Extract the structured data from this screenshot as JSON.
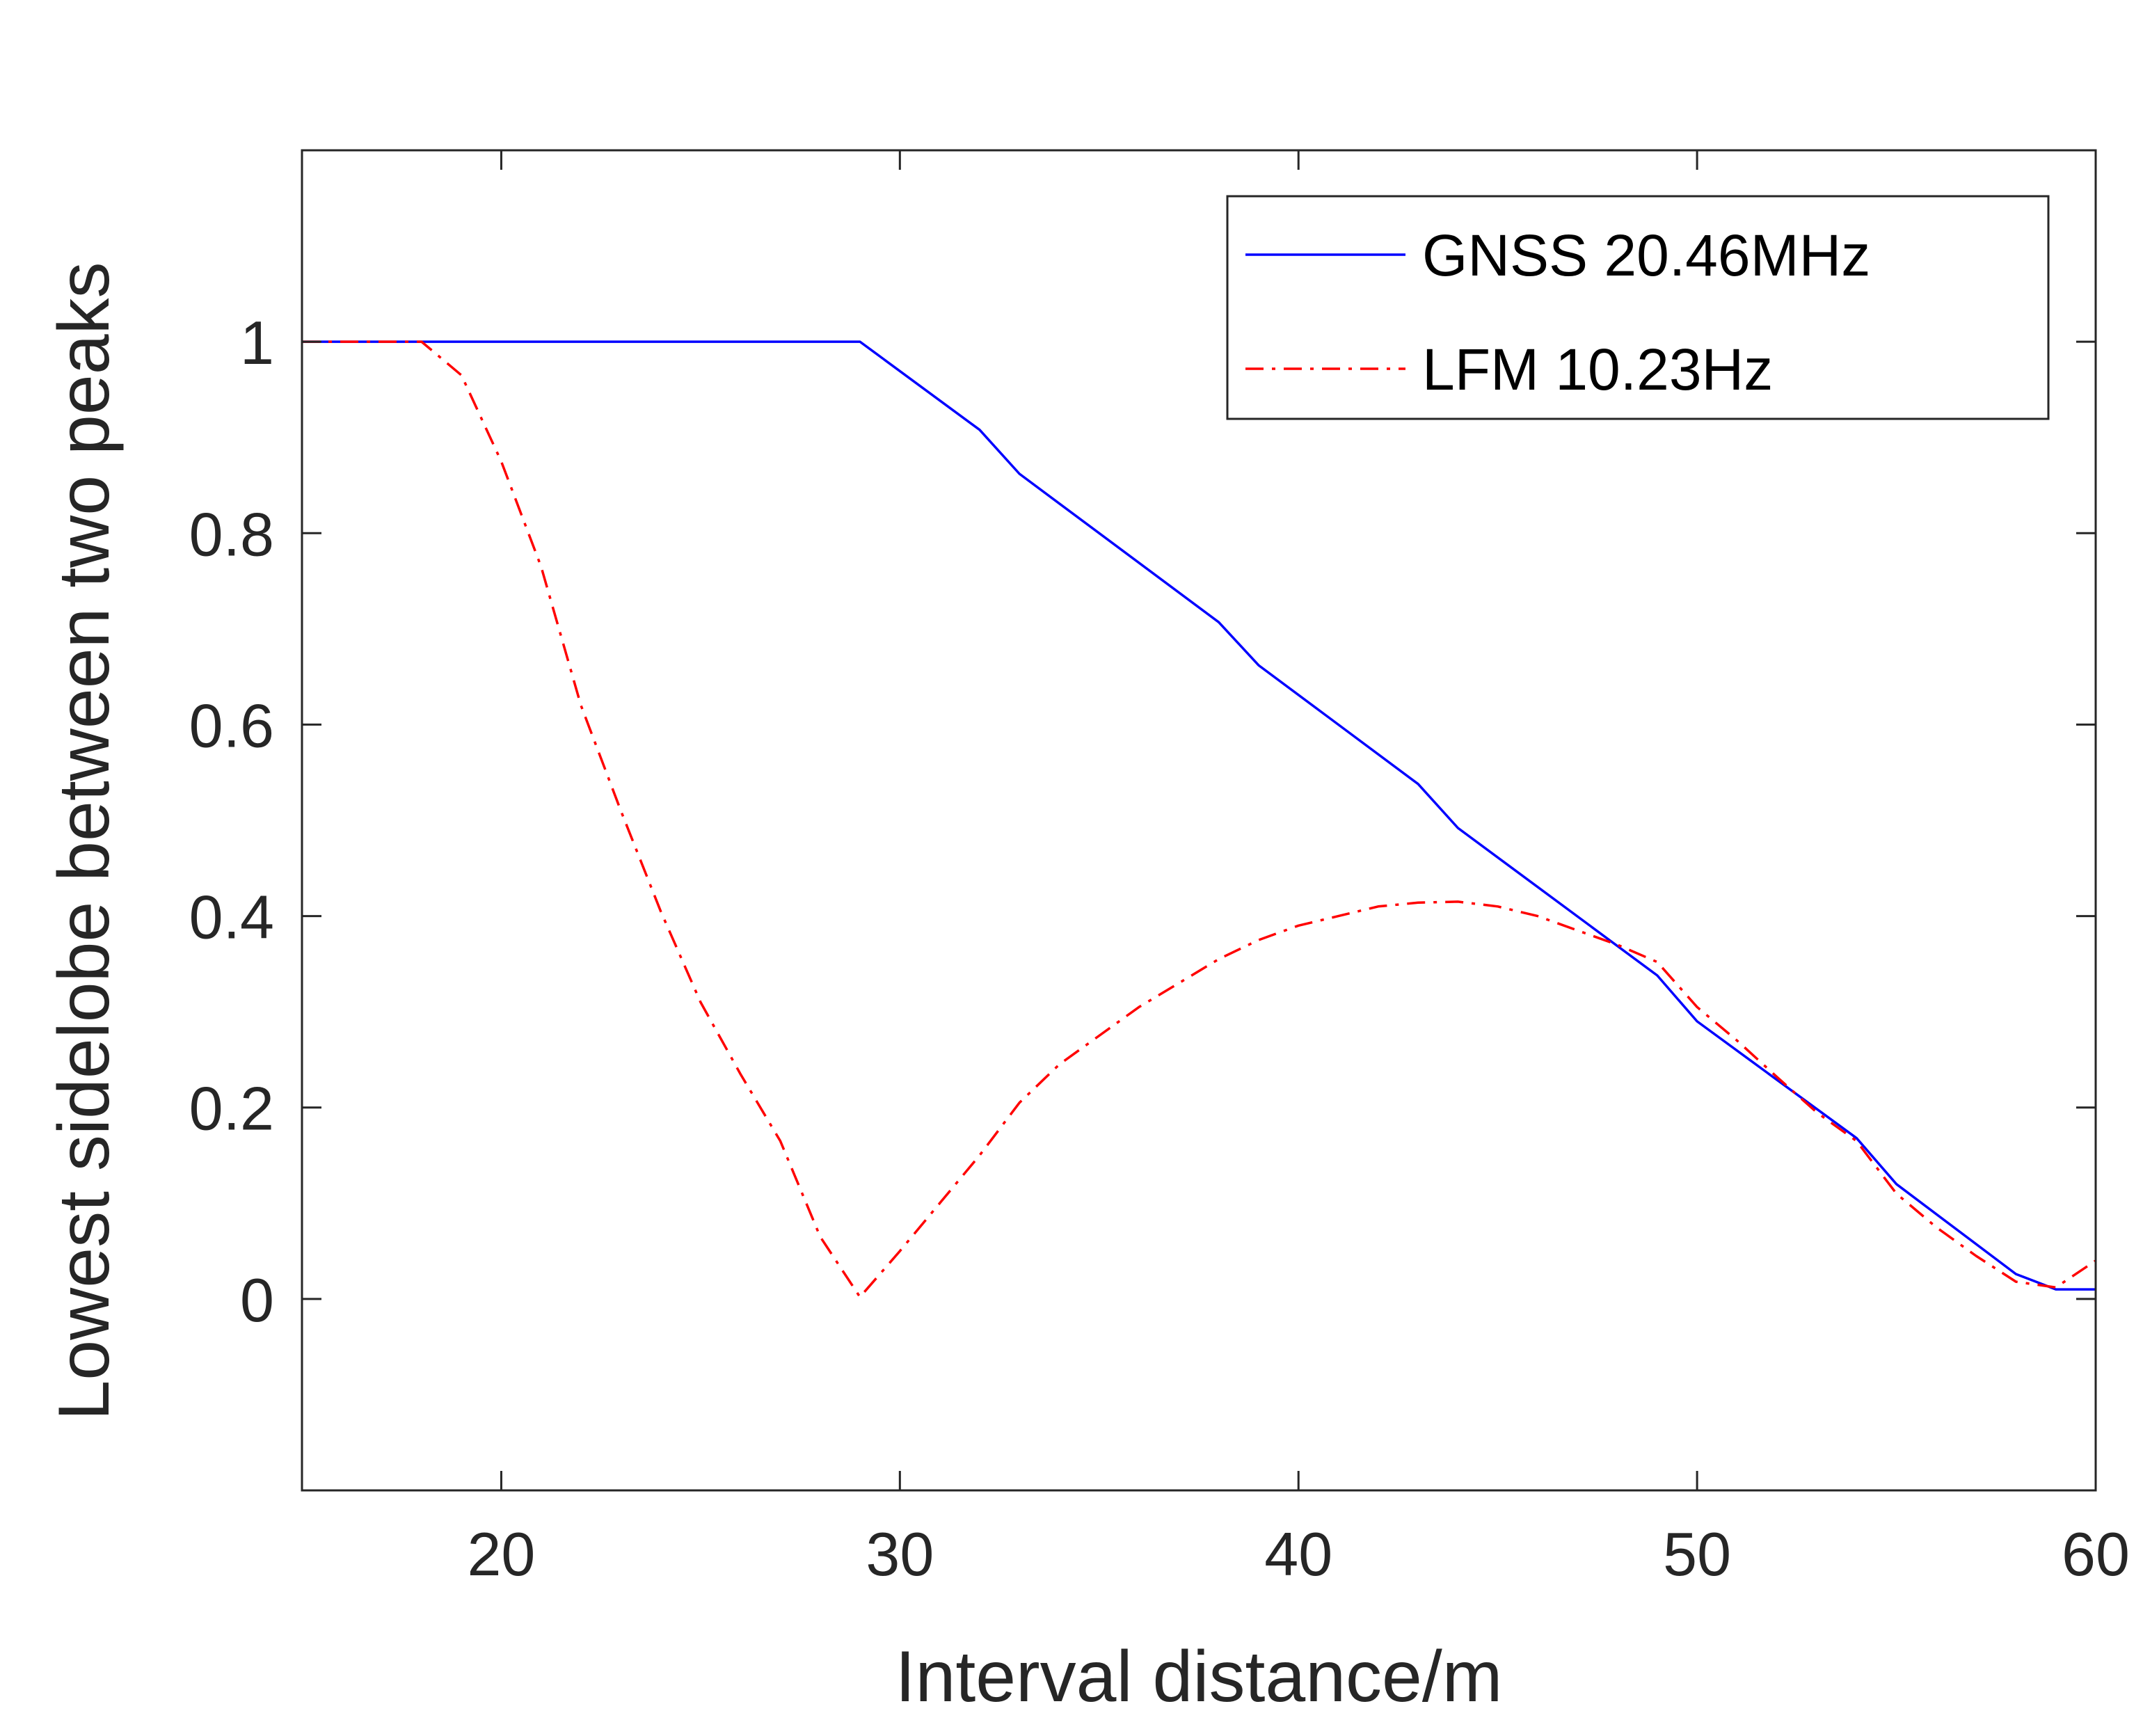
{
  "chart_data": {
    "type": "line",
    "title": "",
    "xlabel": "Interval distance/m",
    "ylabel": "Lowest sidelobe between two peaks",
    "xlim": [
      15,
      60
    ],
    "ylim": [
      -0.2,
      1.2
    ],
    "xticks": [
      20,
      30,
      40,
      50,
      60
    ],
    "yticks": [
      0,
      0.2,
      0.4,
      0.6,
      0.8,
      1
    ],
    "xtick_labels": [
      "20",
      "30",
      "40",
      "50",
      "60"
    ],
    "ytick_labels": [
      "0",
      "0.2",
      "0.4",
      "0.6",
      "0.8",
      "1"
    ],
    "legend_position": "top-right",
    "series": [
      {
        "name": "GNSS 20.46MHz",
        "color": "#0000ff",
        "style": "solid",
        "x": [
          15,
          29,
          32,
          33,
          38,
          39,
          43,
          44,
          49,
          50,
          54,
          55,
          58,
          59,
          60
        ],
        "y": [
          1.0,
          1.0,
          0.908,
          0.862,
          0.707,
          0.662,
          0.538,
          0.492,
          0.338,
          0.29,
          0.168,
          0.12,
          0.026,
          0.01,
          0.01
        ]
      },
      {
        "name": "LFM 10.23Hz",
        "color": "#ff0000",
        "style": "dashdot",
        "x": [
          15,
          18,
          19,
          20,
          21,
          22,
          23,
          24,
          25,
          26,
          27,
          28,
          29,
          30,
          31,
          32,
          33,
          34,
          35,
          36,
          37,
          38,
          39,
          40,
          41,
          42,
          43,
          44,
          45,
          46,
          47,
          48,
          49,
          50,
          51,
          52,
          53,
          54,
          55,
          56,
          57,
          58,
          59,
          60
        ],
        "y": [
          1.0,
          1.0,
          0.965,
          0.875,
          0.765,
          0.62,
          0.51,
          0.405,
          0.31,
          0.235,
          0.165,
          0.065,
          0.002,
          0.05,
          0.1,
          0.15,
          0.205,
          0.245,
          0.275,
          0.305,
          0.33,
          0.355,
          0.375,
          0.39,
          0.4,
          0.41,
          0.414,
          0.415,
          0.41,
          0.4,
          0.385,
          0.37,
          0.352,
          0.305,
          0.27,
          0.232,
          0.195,
          0.165,
          0.11,
          0.075,
          0.045,
          0.018,
          0.012,
          0.04
        ]
      }
    ]
  }
}
